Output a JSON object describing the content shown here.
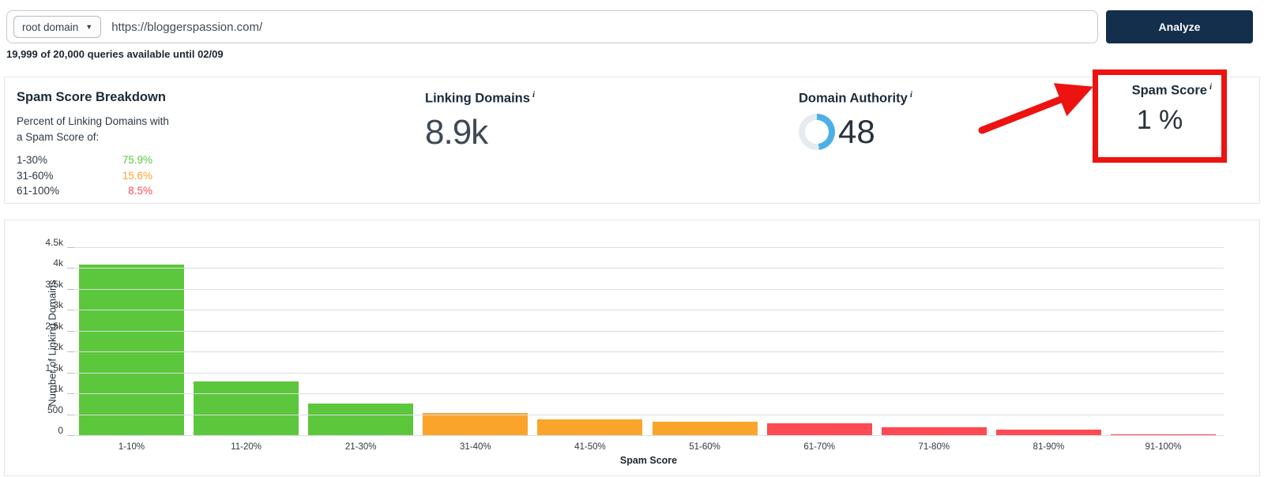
{
  "search": {
    "scope_selector": "root domain",
    "scope_caret": "▼",
    "url_value": "https://bloggerspassion.com/",
    "analyze_label": "Analyze",
    "queries_note": "19,999 of 20,000 queries available until 02/09"
  },
  "stats": {
    "breakdown": {
      "title": "Spam Score Breakdown",
      "subtitle_line1": "Percent of Linking Domains with",
      "subtitle_line2": "a Spam Score of:",
      "rows": [
        {
          "label": "1-30%",
          "value": "75.9%",
          "color": "#5cc63c"
        },
        {
          "label": "31-60%",
          "value": "15.6%",
          "color": "#fba42c"
        },
        {
          "label": "61-100%",
          "value": "8.5%",
          "color": "#fd4a53"
        }
      ]
    },
    "linking_domains": {
      "label": "Linking Domains",
      "info_icon": "i",
      "value": "8.9k"
    },
    "domain_authority": {
      "label": "Domain Authority",
      "info_icon": "i",
      "value": "48",
      "donut_percent": 48,
      "donut_color": "#4cb0e8",
      "donut_track": "#e6ebf0"
    },
    "spam_score": {
      "label": "Spam Score",
      "info_icon": "i",
      "value": "1 %"
    }
  },
  "annotation": {
    "color": "#ec1310"
  },
  "chart_data": {
    "type": "bar",
    "title": "",
    "xlabel": "Spam Score",
    "ylabel": "Number of Linking Domains",
    "categories": [
      "1-10%",
      "11-20%",
      "21-30%",
      "31-40%",
      "41-50%",
      "51-60%",
      "61-70%",
      "71-80%",
      "81-90%",
      "91-100%"
    ],
    "values": [
      4100,
      1300,
      770,
      550,
      390,
      340,
      300,
      210,
      150,
      30
    ],
    "bar_colors": [
      "#5cc63c",
      "#5cc63c",
      "#5cc63c",
      "#fba42c",
      "#fba42c",
      "#fba42c",
      "#fd4a53",
      "#fd4a53",
      "#fd4a53",
      "#fd4a53"
    ],
    "ylim": [
      0,
      4500
    ],
    "ytick_interval": 500,
    "ytick_labels": [
      "0",
      "500",
      "1k",
      "1.5k",
      "2k",
      "2.5k",
      "3k",
      "3.5k",
      "4k",
      "4.5k"
    ],
    "grid": true,
    "legend": false
  }
}
